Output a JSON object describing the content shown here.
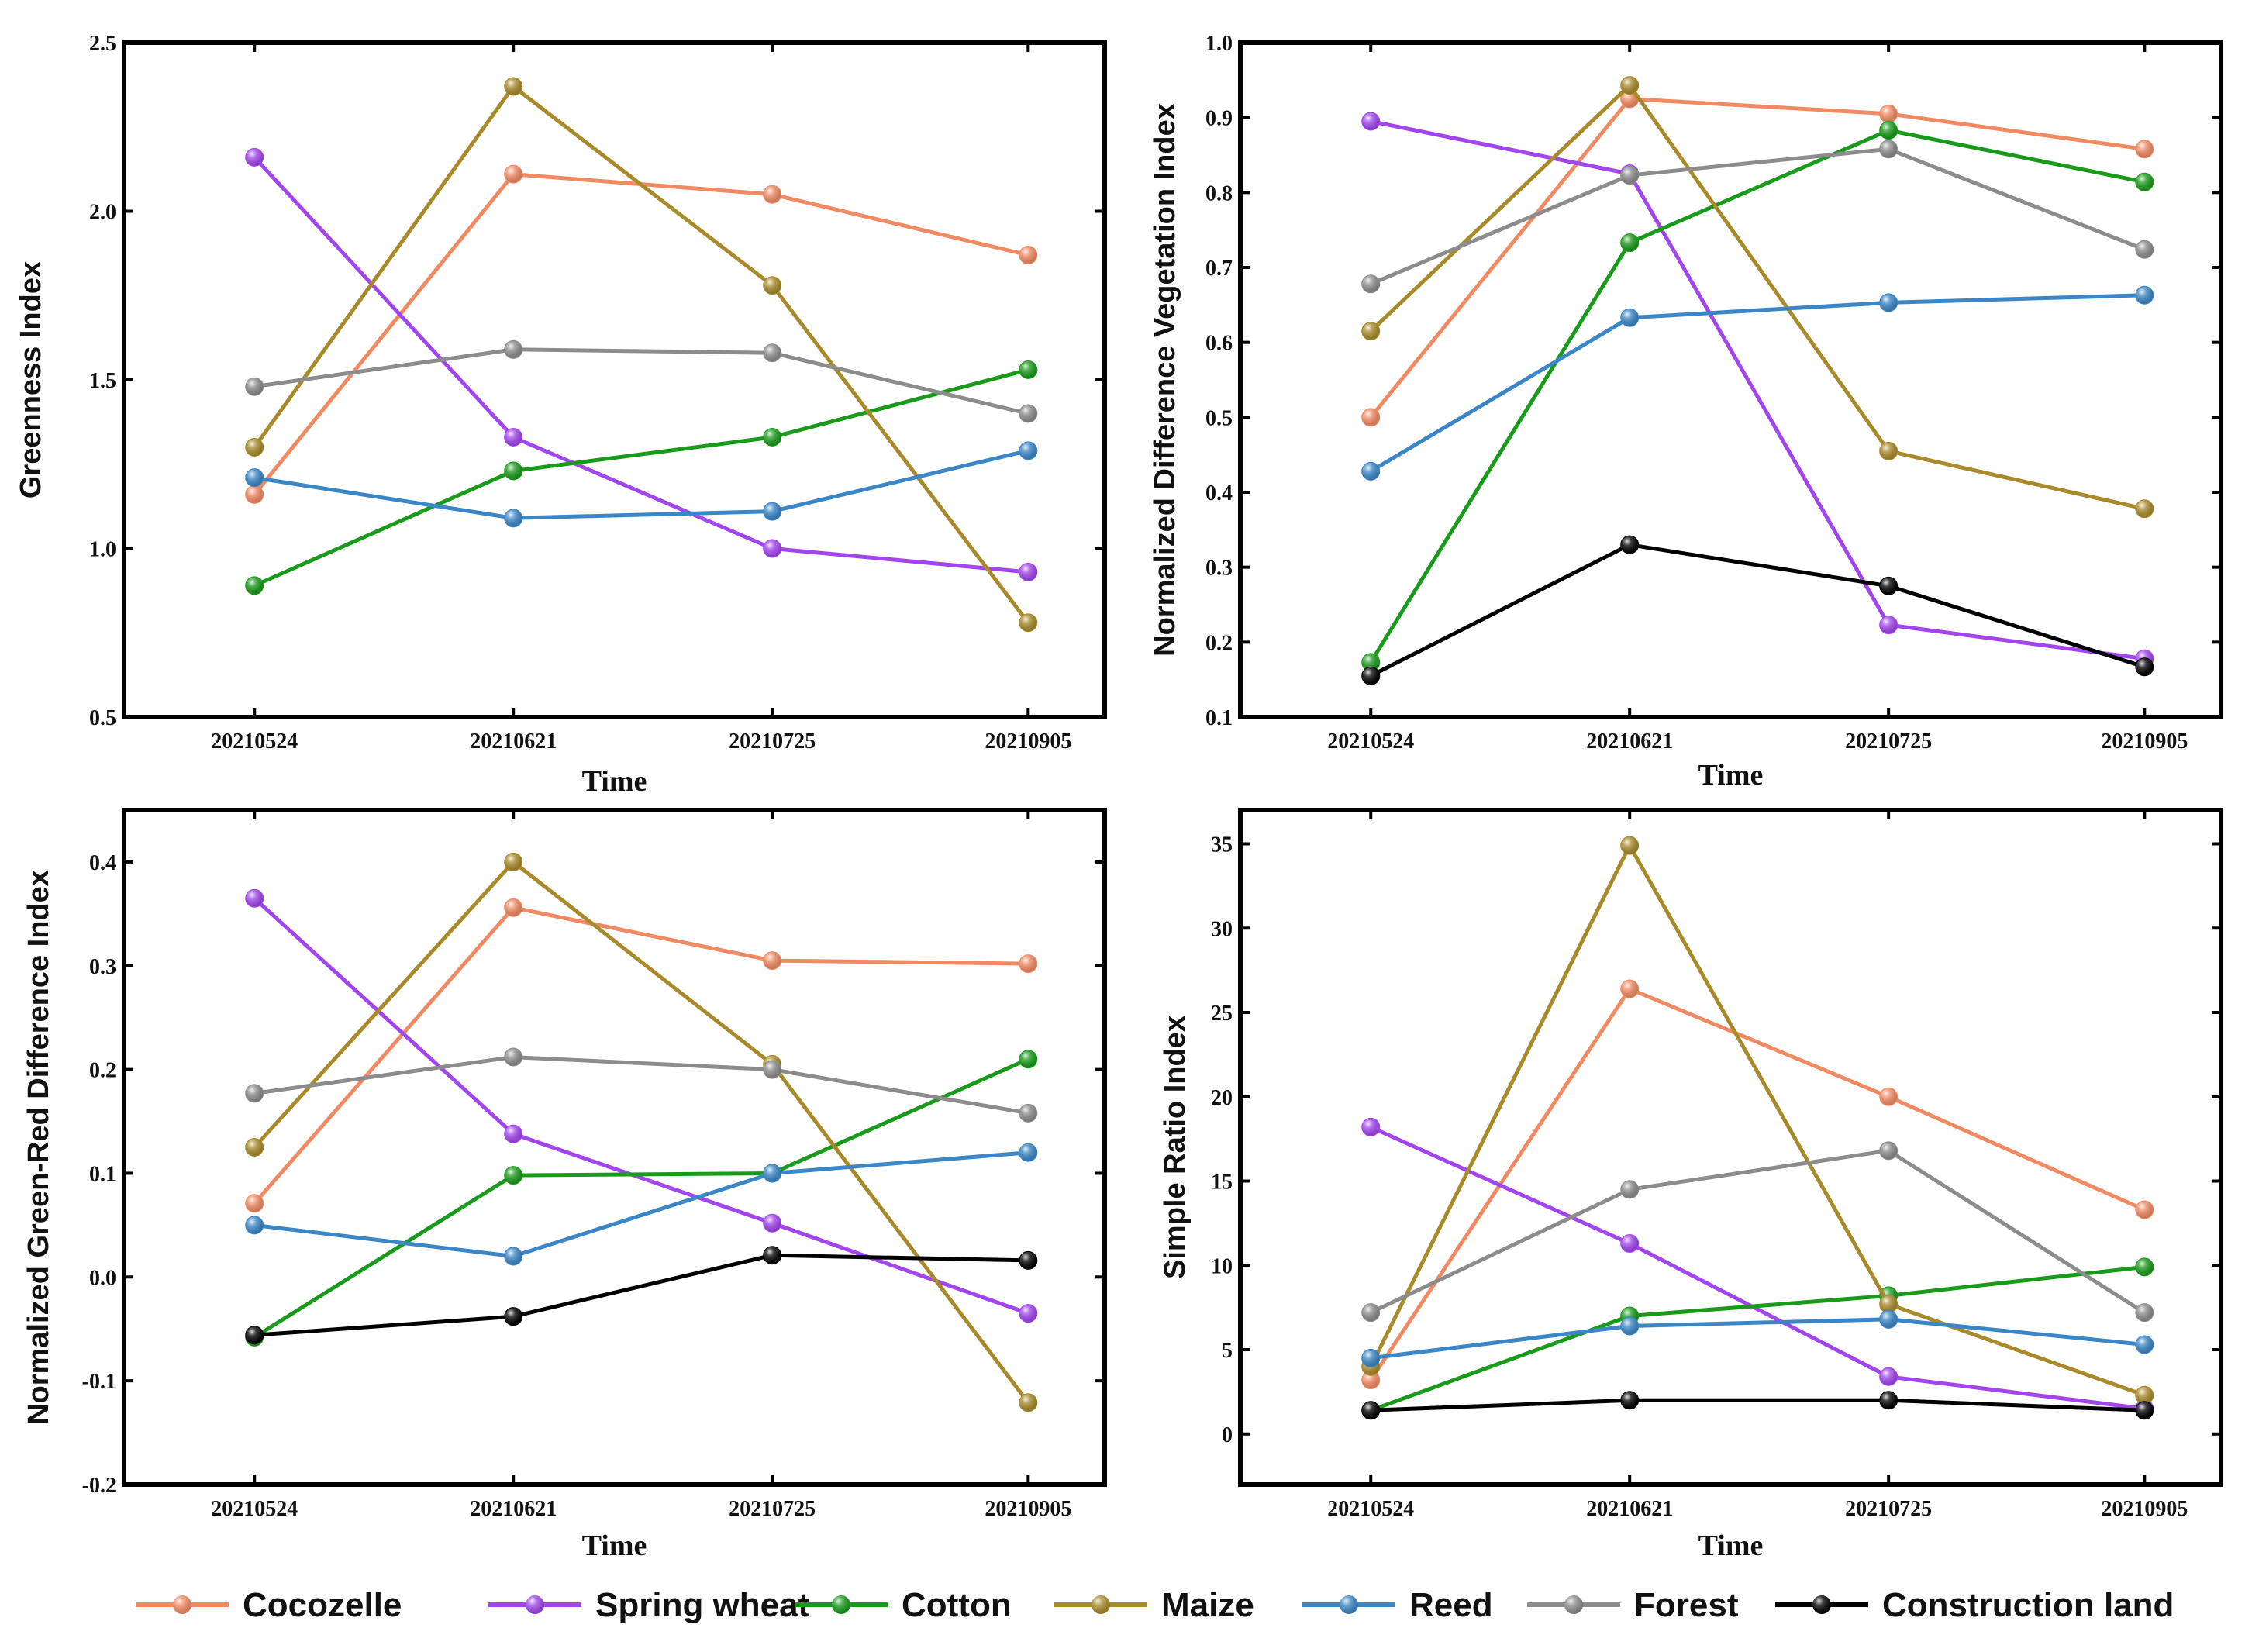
{
  "legend": [
    {
      "name": "Cocozelle",
      "color": "#f08a63"
    },
    {
      "name": "Spring wheat",
      "color": "#a245ec"
    },
    {
      "name": "Cotton",
      "color": "#1a9a1a"
    },
    {
      "name": "Maize",
      "color": "#a88a2a"
    },
    {
      "name": "Reed",
      "color": "#3a86c6"
    },
    {
      "name": "Forest",
      "color": "#8c8c8c"
    },
    {
      "name": "Construction land",
      "color": "#000000"
    }
  ],
  "chart_data": [
    {
      "type": "line",
      "title": "",
      "xlabel": "Time",
      "ylabel": "Greenness Index",
      "categories": [
        "20210524",
        "20210621",
        "20210725",
        "20210905"
      ],
      "ylim": [
        0.5,
        2.5
      ],
      "yticks": [
        "0.5",
        "1.0",
        "1.5",
        "2.0",
        "2.5"
      ],
      "yticks_values": [
        0.5,
        1.0,
        1.5,
        2.0,
        2.5
      ],
      "series": [
        {
          "name": "Cocozelle",
          "values": [
            1.16,
            2.11,
            2.05,
            1.87
          ]
        },
        {
          "name": "Spring wheat",
          "values": [
            2.16,
            1.33,
            1.0,
            0.93
          ]
        },
        {
          "name": "Cotton",
          "values": [
            0.89,
            1.23,
            1.33,
            1.53
          ]
        },
        {
          "name": "Maize",
          "values": [
            1.3,
            2.37,
            1.78,
            0.78
          ]
        },
        {
          "name": "Reed",
          "values": [
            1.21,
            1.09,
            1.11,
            1.29
          ]
        },
        {
          "name": "Forest",
          "values": [
            1.48,
            1.59,
            1.58,
            1.4
          ]
        }
      ]
    },
    {
      "type": "line",
      "title": "",
      "xlabel": "Time",
      "ylabel": "Normalized Difference Vegetation Index",
      "categories": [
        "20210524",
        "20210621",
        "20210725",
        "20210905"
      ],
      "ylim": [
        0.1,
        1.0
      ],
      "yticks": [
        "0.1",
        "0.2",
        "0.3",
        "0.4",
        "0.5",
        "0.6",
        "0.7",
        "0.8",
        "0.9",
        "1.0"
      ],
      "yticks_values": [
        0.1,
        0.2,
        0.3,
        0.4,
        0.5,
        0.6,
        0.7,
        0.8,
        0.9,
        1.0
      ],
      "series": [
        {
          "name": "Cocozelle",
          "values": [
            0.5,
            0.925,
            0.905,
            0.858
          ]
        },
        {
          "name": "Spring wheat",
          "values": [
            0.895,
            0.825,
            0.223,
            0.178
          ]
        },
        {
          "name": "Cotton",
          "values": [
            0.173,
            0.733,
            0.883,
            0.814
          ]
        },
        {
          "name": "Maize",
          "values": [
            0.615,
            0.943,
            0.455,
            0.378
          ]
        },
        {
          "name": "Reed",
          "values": [
            0.428,
            0.633,
            0.653,
            0.663
          ]
        },
        {
          "name": "Forest",
          "values": [
            0.678,
            0.823,
            0.858,
            0.724
          ]
        },
        {
          "name": "Construction land",
          "values": [
            0.155,
            0.33,
            0.275,
            0.167
          ]
        }
      ]
    },
    {
      "type": "line",
      "title": "",
      "xlabel": "Time",
      "ylabel": "Normalized Green-Red Difference Index",
      "categories": [
        "20210524",
        "20210621",
        "20210725",
        "20210905"
      ],
      "ylim": [
        -0.2,
        0.45
      ],
      "yticks": [
        "-0.2",
        "-0.1",
        "0.0",
        "0.1",
        "0.2",
        "0.3",
        "0.4"
      ],
      "yticks_values": [
        -0.2,
        -0.1,
        0.0,
        0.1,
        0.2,
        0.3,
        0.4
      ],
      "series": [
        {
          "name": "Cocozelle",
          "values": [
            0.071,
            0.356,
            0.305,
            0.302
          ]
        },
        {
          "name": "Spring wheat",
          "values": [
            0.365,
            0.138,
            0.052,
            -0.035
          ]
        },
        {
          "name": "Cotton",
          "values": [
            -0.058,
            0.098,
            0.1,
            0.21
          ]
        },
        {
          "name": "Maize",
          "values": [
            0.125,
            0.4,
            0.205,
            -0.121
          ]
        },
        {
          "name": "Reed",
          "values": [
            0.05,
            0.02,
            0.1,
            0.12
          ]
        },
        {
          "name": "Forest",
          "values": [
            0.177,
            0.212,
            0.2,
            0.158
          ]
        },
        {
          "name": "Construction land",
          "values": [
            -0.056,
            -0.038,
            0.021,
            0.016
          ]
        }
      ]
    },
    {
      "type": "line",
      "title": "",
      "xlabel": "Time",
      "ylabel": "Simple Ratio Index",
      "categories": [
        "20210524",
        "20210621",
        "20210725",
        "20210905"
      ],
      "ylim": [
        -3,
        37
      ],
      "yticks": [
        "0",
        "5",
        "10",
        "15",
        "20",
        "25",
        "30",
        "35"
      ],
      "yticks_values": [
        0,
        5,
        10,
        15,
        20,
        25,
        30,
        35
      ],
      "series": [
        {
          "name": "Cocozelle",
          "values": [
            3.2,
            26.4,
            20.0,
            13.3
          ]
        },
        {
          "name": "Spring wheat",
          "values": [
            18.2,
            11.3,
            3.4,
            1.5
          ]
        },
        {
          "name": "Cotton",
          "values": [
            1.4,
            7.0,
            8.2,
            9.9
          ]
        },
        {
          "name": "Maize",
          "values": [
            4.0,
            34.9,
            7.7,
            2.3
          ]
        },
        {
          "name": "Reed",
          "values": [
            4.5,
            6.4,
            6.8,
            5.3
          ]
        },
        {
          "name": "Forest",
          "values": [
            7.2,
            14.5,
            16.8,
            7.2
          ]
        },
        {
          "name": "Construction land",
          "values": [
            1.4,
            2.0,
            2.0,
            1.4
          ]
        }
      ]
    }
  ]
}
